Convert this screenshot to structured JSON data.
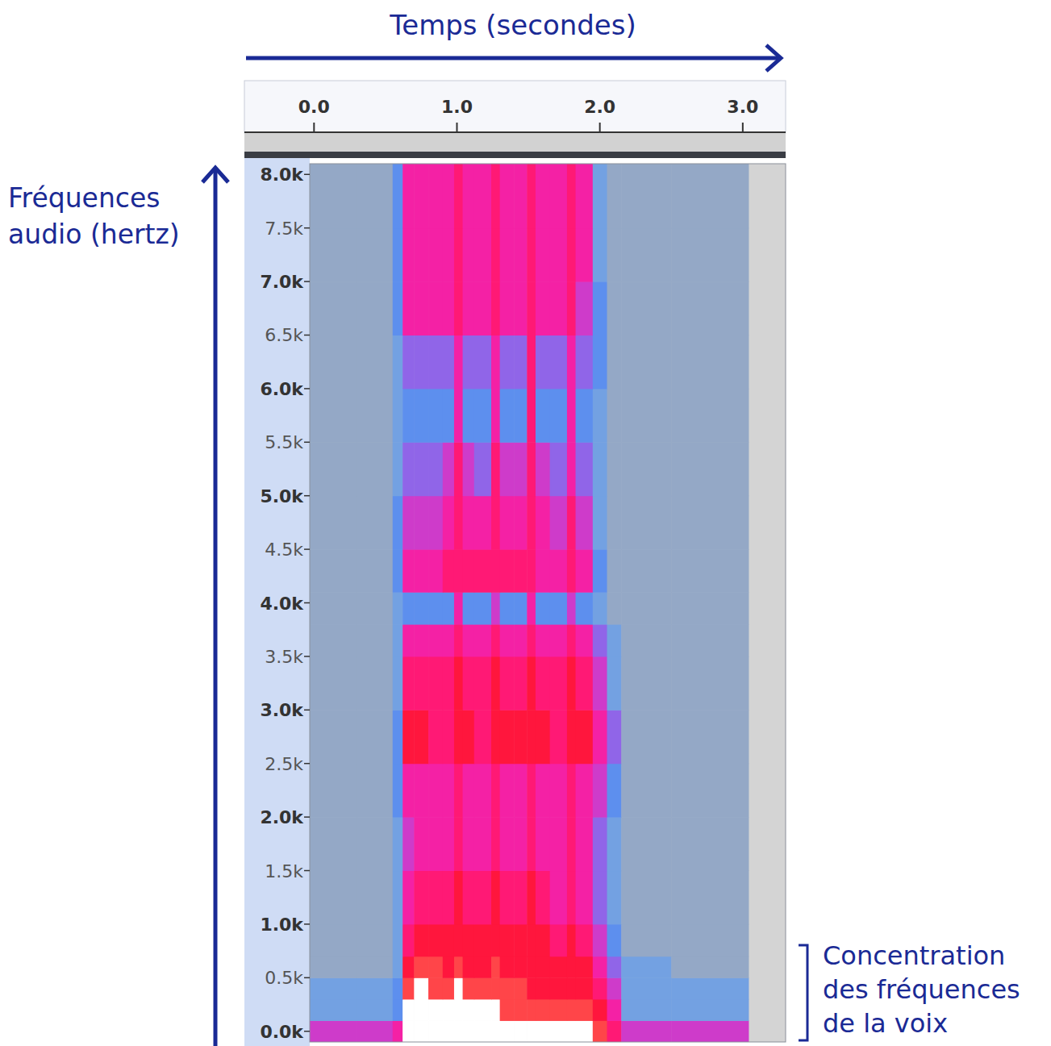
{
  "chart_data": {
    "type": "heatmap",
    "x_label": "Temps (secondes)",
    "y_label": "Fréquences audio (hertz)",
    "annotation": "Concentration des fréquences de la voix",
    "grid": false,
    "xlim": [
      -0.03,
      3.3
    ],
    "ylim": [
      -100,
      8100
    ],
    "xticks": [
      {
        "value": 0,
        "label": "0.0"
      },
      {
        "value": 1,
        "label": "1.0"
      },
      {
        "value": 2,
        "label": "2.0"
      },
      {
        "value": 3,
        "label": "3.0"
      }
    ],
    "yticks": [
      {
        "value": 0,
        "label": "0.0k"
      },
      {
        "value": 500,
        "label": "0.5k"
      },
      {
        "value": 1000,
        "label": "1.0k"
      },
      {
        "value": 1500,
        "label": "1.5k"
      },
      {
        "value": 2000,
        "label": "2.0k"
      },
      {
        "value": 2500,
        "label": "2.5k"
      },
      {
        "value": 3000,
        "label": "3.0k"
      },
      {
        "value": 3500,
        "label": "3.5k"
      },
      {
        "value": 4000,
        "label": "4.0k"
      },
      {
        "value": 4500,
        "label": "4.5k"
      },
      {
        "value": 5000,
        "label": "5.0k"
      },
      {
        "value": 5500,
        "label": "5.5k"
      },
      {
        "value": 6000,
        "label": "6.0k"
      },
      {
        "value": 6500,
        "label": "6.5k"
      },
      {
        "value": 7000,
        "label": "7.0k"
      },
      {
        "value": 7500,
        "label": "7.5k"
      },
      {
        "value": 8000,
        "label": "8.0k"
      }
    ],
    "x_bins": [
      -0.03,
      0.3,
      0.55,
      0.62,
      0.7,
      0.8,
      0.9,
      0.98,
      1.04,
      1.12,
      1.24,
      1.3,
      1.4,
      1.49,
      1.55,
      1.65,
      1.77,
      1.83,
      1.95,
      2.05,
      2.15,
      2.5,
      3.04
    ],
    "y_bins": [
      -100,
      100,
      300,
      500,
      700,
      1000,
      1500,
      2000,
      2500,
      3000,
      3500,
      3800,
      4100,
      4500,
      5000,
      5500,
      6000,
      6500,
      7000,
      7500,
      8100
    ],
    "values": [
      [
        5,
        5,
        6,
        10,
        10,
        10,
        10,
        10,
        10,
        10,
        10,
        10,
        10,
        10,
        10,
        10,
        10,
        10,
        9,
        7,
        5,
        5
      ],
      [
        2,
        2,
        3,
        10,
        10,
        10,
        10,
        10,
        10,
        10,
        10,
        9,
        9,
        9,
        9,
        9,
        9,
        9,
        8,
        6,
        2,
        2
      ],
      [
        2,
        2,
        3,
        9,
        10,
        9,
        9,
        10,
        9,
        9,
        9,
        9,
        9,
        8,
        8,
        8,
        8,
        8,
        7,
        5,
        2,
        2
      ],
      [
        1,
        1,
        2,
        8,
        9,
        9,
        8,
        9,
        8,
        8,
        9,
        8,
        8,
        8,
        8,
        8,
        8,
        8,
        6,
        4,
        2,
        1
      ],
      [
        1,
        1,
        2,
        7,
        8,
        8,
        8,
        8,
        8,
        8,
        8,
        8,
        8,
        8,
        8,
        7,
        8,
        7,
        5,
        3,
        1,
        1
      ],
      [
        1,
        1,
        2,
        6,
        7,
        7,
        7,
        8,
        7,
        7,
        8,
        7,
        7,
        8,
        7,
        6,
        7,
        6,
        4,
        2,
        1,
        1
      ],
      [
        1,
        1,
        2,
        5,
        6,
        6,
        6,
        7,
        6,
        6,
        7,
        6,
        6,
        7,
        6,
        6,
        7,
        6,
        4,
        2,
        1,
        1
      ],
      [
        1,
        1,
        3,
        6,
        6,
        6,
        6,
        7,
        6,
        6,
        7,
        6,
        6,
        7,
        6,
        6,
        7,
        6,
        5,
        3,
        1,
        1
      ],
      [
        1,
        1,
        3,
        8,
        8,
        7,
        7,
        8,
        8,
        7,
        8,
        8,
        8,
        8,
        8,
        7,
        8,
        8,
        6,
        4,
        1,
        1
      ],
      [
        1,
        1,
        2,
        7,
        7,
        7,
        7,
        8,
        7,
        7,
        8,
        7,
        7,
        8,
        7,
        7,
        8,
        7,
        5,
        2,
        1,
        1
      ],
      [
        1,
        1,
        2,
        6,
        6,
        6,
        6,
        7,
        6,
        6,
        7,
        6,
        6,
        7,
        6,
        6,
        7,
        6,
        4,
        2,
        1,
        1
      ],
      [
        1,
        1,
        2,
        3,
        3,
        3,
        3,
        6,
        3,
        3,
        5,
        3,
        3,
        6,
        3,
        3,
        5,
        3,
        2,
        1,
        1,
        1
      ],
      [
        1,
        1,
        3,
        6,
        6,
        6,
        7,
        7,
        7,
        7,
        7,
        7,
        7,
        7,
        6,
        6,
        7,
        6,
        3,
        1,
        1,
        1
      ],
      [
        1,
        1,
        3,
        5,
        5,
        5,
        6,
        7,
        6,
        6,
        7,
        6,
        6,
        7,
        6,
        5,
        7,
        5,
        2,
        1,
        1,
        1
      ],
      [
        1,
        1,
        2,
        4,
        4,
        4,
        5,
        7,
        5,
        4,
        7,
        5,
        5,
        7,
        5,
        4,
        6,
        4,
        2,
        1,
        1,
        1
      ],
      [
        1,
        1,
        2,
        3,
        3,
        3,
        3,
        6,
        3,
        3,
        6,
        3,
        3,
        7,
        3,
        3,
        6,
        3,
        2,
        1,
        1,
        1
      ],
      [
        1,
        1,
        2,
        4,
        4,
        4,
        4,
        6,
        4,
        4,
        6,
        4,
        4,
        7,
        4,
        4,
        6,
        4,
        3,
        1,
        1,
        1
      ],
      [
        1,
        1,
        3,
        6,
        6,
        6,
        6,
        7,
        6,
        6,
        7,
        6,
        6,
        7,
        6,
        6,
        7,
        5,
        3,
        1,
        1,
        1
      ],
      [
        1,
        1,
        3,
        6,
        6,
        6,
        6,
        7,
        6,
        6,
        7,
        6,
        6,
        7,
        6,
        6,
        7,
        6,
        2,
        1,
        1,
        1
      ],
      [
        1,
        1,
        3,
        6,
        6,
        6,
        6,
        7,
        6,
        6,
        7,
        6,
        6,
        7,
        6,
        6,
        7,
        6,
        2,
        1,
        1,
        1
      ]
    ]
  }
}
